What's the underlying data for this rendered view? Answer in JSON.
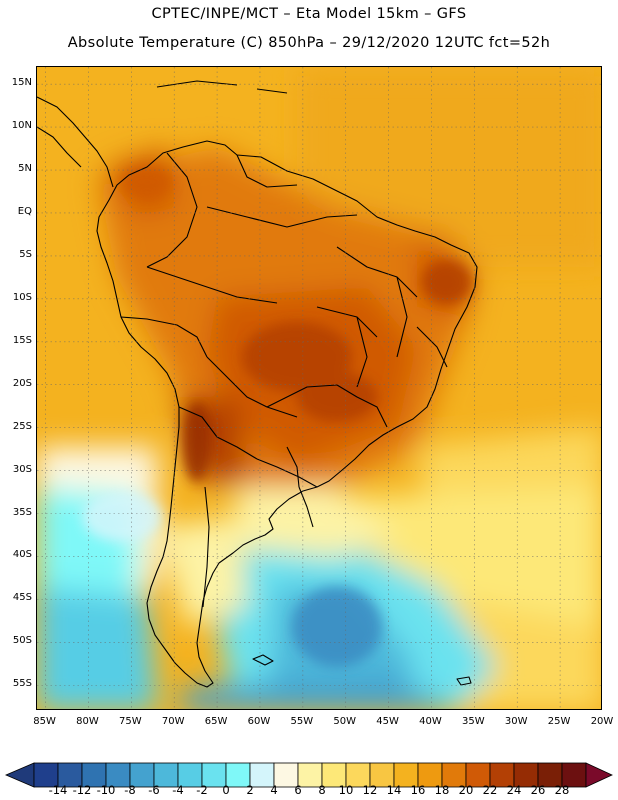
{
  "header": {
    "line1": "CPTEC/INPE/MCT –  Eta Model 15km – GFS",
    "line2": "Absolute Temperature (C) 850hPa – 29/12/2020 12UTC fct=52h"
  },
  "map": {
    "lat_labels": [
      "15N",
      "10N",
      "5N",
      "EQ",
      "5S",
      "10S",
      "15S",
      "20S",
      "25S",
      "30S",
      "35S",
      "40S",
      "45S",
      "50S",
      "55S"
    ],
    "lon_labels": [
      "85W",
      "80W",
      "75W",
      "70W",
      "65W",
      "60W",
      "55W",
      "50W",
      "45W",
      "40W",
      "35W",
      "30W",
      "25W",
      "20W"
    ],
    "lat_range": [
      17,
      -58
    ],
    "lon_range": [
      -86,
      -20
    ],
    "grid": true,
    "grid_style": "dotted"
  },
  "colorbar": {
    "labels": [
      "-14",
      "-12",
      "-10",
      "-8",
      "-6",
      "-4",
      "-2",
      "0",
      "2",
      "4",
      "6",
      "8",
      "10",
      "12",
      "14",
      "16",
      "18",
      "20",
      "22",
      "24",
      "26",
      "28"
    ],
    "colors": [
      "#1f3f8c",
      "#2a5a9e",
      "#2f73b1",
      "#3a8bc2",
      "#44a2cf",
      "#4db8da",
      "#57cde5",
      "#6ae2ef",
      "#7ff8f8",
      "#d4f5fb",
      "#fdf8e3",
      "#fdf3a5",
      "#fde878",
      "#fcd85c",
      "#f8c642",
      "#f4b21f",
      "#ee9a10",
      "#e17a0a",
      "#d05a06",
      "#b34005",
      "#952c04",
      "#7a1f06",
      "#6c1010"
    ]
  }
}
